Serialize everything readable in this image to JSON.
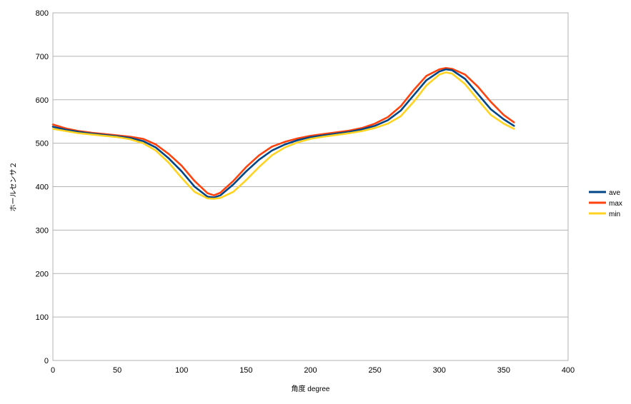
{
  "chart_data": {
    "type": "line",
    "xlabel": "角度 degree",
    "ylabel": "ホールセンサ２",
    "xlim": [
      0,
      400
    ],
    "ylim": [
      0,
      800
    ],
    "x_ticks": [
      0,
      50,
      100,
      150,
      200,
      250,
      300,
      350,
      400
    ],
    "y_ticks": [
      0,
      100,
      200,
      300,
      400,
      500,
      600,
      700,
      800
    ],
    "grid": "horizontal",
    "legend_position": "right",
    "x": [
      0,
      10,
      20,
      30,
      40,
      50,
      60,
      70,
      80,
      90,
      100,
      110,
      120,
      125,
      130,
      140,
      150,
      160,
      170,
      180,
      190,
      200,
      210,
      220,
      230,
      240,
      250,
      260,
      270,
      280,
      290,
      300,
      305,
      310,
      320,
      330,
      340,
      350,
      358
    ],
    "series": [
      {
        "name": "ave",
        "color": "#004586",
        "values": [
          538,
          531,
          526,
          522,
          519,
          516,
          512,
          505,
          490,
          465,
          435,
          400,
          377,
          375,
          380,
          405,
          435,
          462,
          483,
          497,
          507,
          514,
          518,
          522,
          526,
          532,
          540,
          553,
          575,
          610,
          645,
          665,
          670,
          668,
          648,
          613,
          578,
          555,
          540
        ]
      },
      {
        "name": "max",
        "color": "#ff420e",
        "values": [
          543,
          534,
          528,
          524,
          521,
          518,
          515,
          510,
          497,
          475,
          448,
          413,
          385,
          380,
          386,
          413,
          445,
          472,
          492,
          503,
          511,
          517,
          521,
          525,
          529,
          535,
          545,
          560,
          585,
          622,
          655,
          670,
          673,
          671,
          658,
          630,
          595,
          565,
          548
        ]
      },
      {
        "name": "min",
        "color": "#ffd320",
        "values": [
          533,
          528,
          523,
          520,
          517,
          514,
          509,
          500,
          483,
          455,
          420,
          388,
          373,
          372,
          374,
          388,
          415,
          445,
          472,
          490,
          502,
          510,
          515,
          519,
          523,
          528,
          535,
          545,
          562,
          595,
          633,
          658,
          663,
          660,
          636,
          600,
          565,
          545,
          533
        ]
      }
    ]
  }
}
